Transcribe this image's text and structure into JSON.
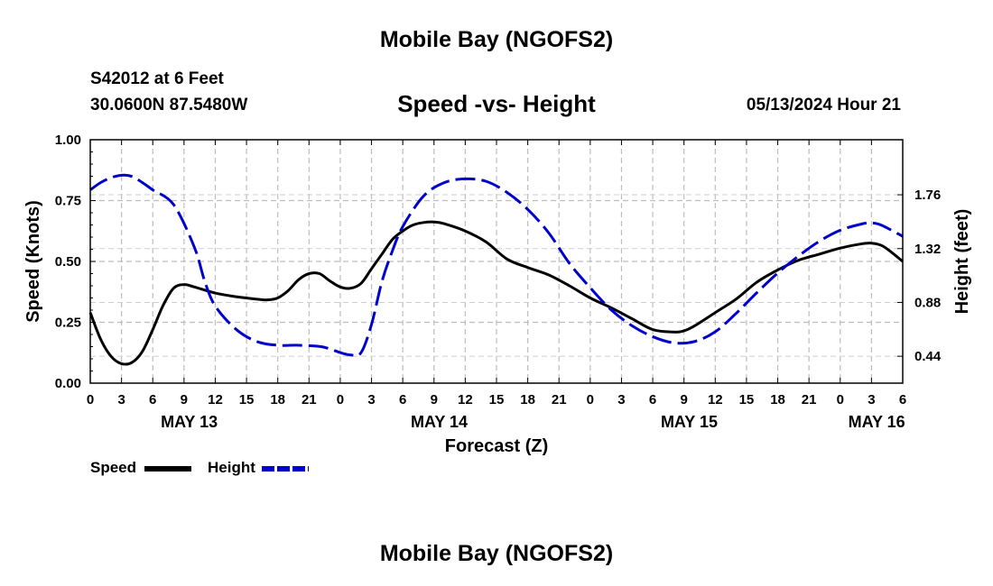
{
  "header": {
    "title": "Mobile Bay (NGOFS2)",
    "station": "S42012 at 6 Feet",
    "coords": "30.0600N  87.5480W",
    "subtitle": "Speed -vs- Height",
    "datetime": "05/13/2024 Hour 21",
    "footer_title": "Mobile Bay (NGOFS2)"
  },
  "legend": {
    "speed_label": "Speed",
    "height_label": "Height"
  },
  "chart_data": {
    "type": "line",
    "title": "Speed -vs- Height",
    "xlabel": "Forecast (Z)",
    "ylabel_left": "Speed (Knots)",
    "ylabel_right": "Height (feet)",
    "xlim_hours": [
      0,
      78
    ],
    "ylim_left": [
      0,
      1
    ],
    "ylim_right": [
      0.22,
      2.21
    ],
    "left_ticks": [
      "0.00",
      "0.25",
      "0.50",
      "0.75",
      "1.00"
    ],
    "right_ticks": [
      "0.44",
      "0.88",
      "1.32",
      "1.76"
    ],
    "right_tick_values": [
      0.44,
      0.88,
      1.32,
      1.76
    ],
    "x_tick_labels": [
      "0",
      "3",
      "6",
      "9",
      "12",
      "15",
      "18",
      "21",
      "0",
      "3",
      "6",
      "9",
      "12",
      "15",
      "18",
      "21",
      "0",
      "3",
      "6",
      "9",
      "12",
      "15",
      "18",
      "21",
      "0",
      "3",
      "6"
    ],
    "day_labels": [
      {
        "label": "MAY 13",
        "hour": 9.5
      },
      {
        "label": "MAY 14",
        "hour": 33.5
      },
      {
        "label": "MAY 15",
        "hour": 57.5
      },
      {
        "label": "MAY 16",
        "hour": 75.5
      }
    ],
    "colors": {
      "speed": "#000000",
      "height": "#0000cc"
    },
    "series": [
      {
        "name": "Speed",
        "style": "solid",
        "axis": "left",
        "x": [
          0,
          1,
          2,
          3,
          4,
          5,
          6,
          7,
          8,
          9,
          10,
          12,
          14,
          16,
          17,
          18,
          19,
          20,
          21,
          22,
          23,
          24,
          25,
          26,
          27,
          28,
          29,
          30,
          31,
          32,
          33,
          34,
          36,
          38,
          40,
          42,
          44,
          46,
          48,
          50,
          52,
          54,
          56,
          57,
          58,
          60,
          62,
          64,
          66,
          68,
          70,
          72,
          74,
          75,
          76,
          77,
          78
        ],
        "values": [
          0.29,
          0.18,
          0.11,
          0.08,
          0.085,
          0.13,
          0.22,
          0.32,
          0.39,
          0.405,
          0.395,
          0.37,
          0.355,
          0.345,
          0.342,
          0.35,
          0.38,
          0.425,
          0.45,
          0.45,
          0.42,
          0.395,
          0.39,
          0.41,
          0.47,
          0.53,
          0.59,
          0.625,
          0.65,
          0.66,
          0.662,
          0.655,
          0.625,
          0.58,
          0.51,
          0.475,
          0.445,
          0.4,
          0.35,
          0.31,
          0.265,
          0.22,
          0.21,
          0.215,
          0.235,
          0.29,
          0.345,
          0.415,
          0.465,
          0.505,
          0.53,
          0.555,
          0.572,
          0.575,
          0.565,
          0.535,
          0.5
        ]
      },
      {
        "name": "Height",
        "style": "dashed",
        "axis": "right",
        "x": [
          0,
          1,
          2,
          3,
          4,
          5,
          6,
          8,
          10,
          11,
          12,
          14,
          16,
          18,
          20,
          22,
          23,
          24,
          25,
          26,
          27,
          28,
          29,
          30,
          32,
          34,
          36,
          38,
          40,
          42,
          44,
          46,
          48,
          50,
          52,
          54,
          56,
          58,
          60,
          62,
          64,
          66,
          68,
          70,
          72,
          74,
          75,
          76,
          78
        ],
        "values": [
          1.8,
          1.86,
          1.9,
          1.92,
          1.91,
          1.86,
          1.8,
          1.68,
          1.33,
          1.05,
          0.85,
          0.66,
          0.56,
          0.53,
          0.53,
          0.52,
          0.5,
          0.47,
          0.45,
          0.47,
          0.7,
          1.05,
          1.3,
          1.5,
          1.75,
          1.86,
          1.89,
          1.87,
          1.78,
          1.64,
          1.45,
          1.2,
          1.0,
          0.82,
          0.69,
          0.6,
          0.55,
          0.56,
          0.64,
          0.79,
          0.96,
          1.12,
          1.26,
          1.38,
          1.47,
          1.52,
          1.53,
          1.51,
          1.42
        ]
      }
    ]
  }
}
